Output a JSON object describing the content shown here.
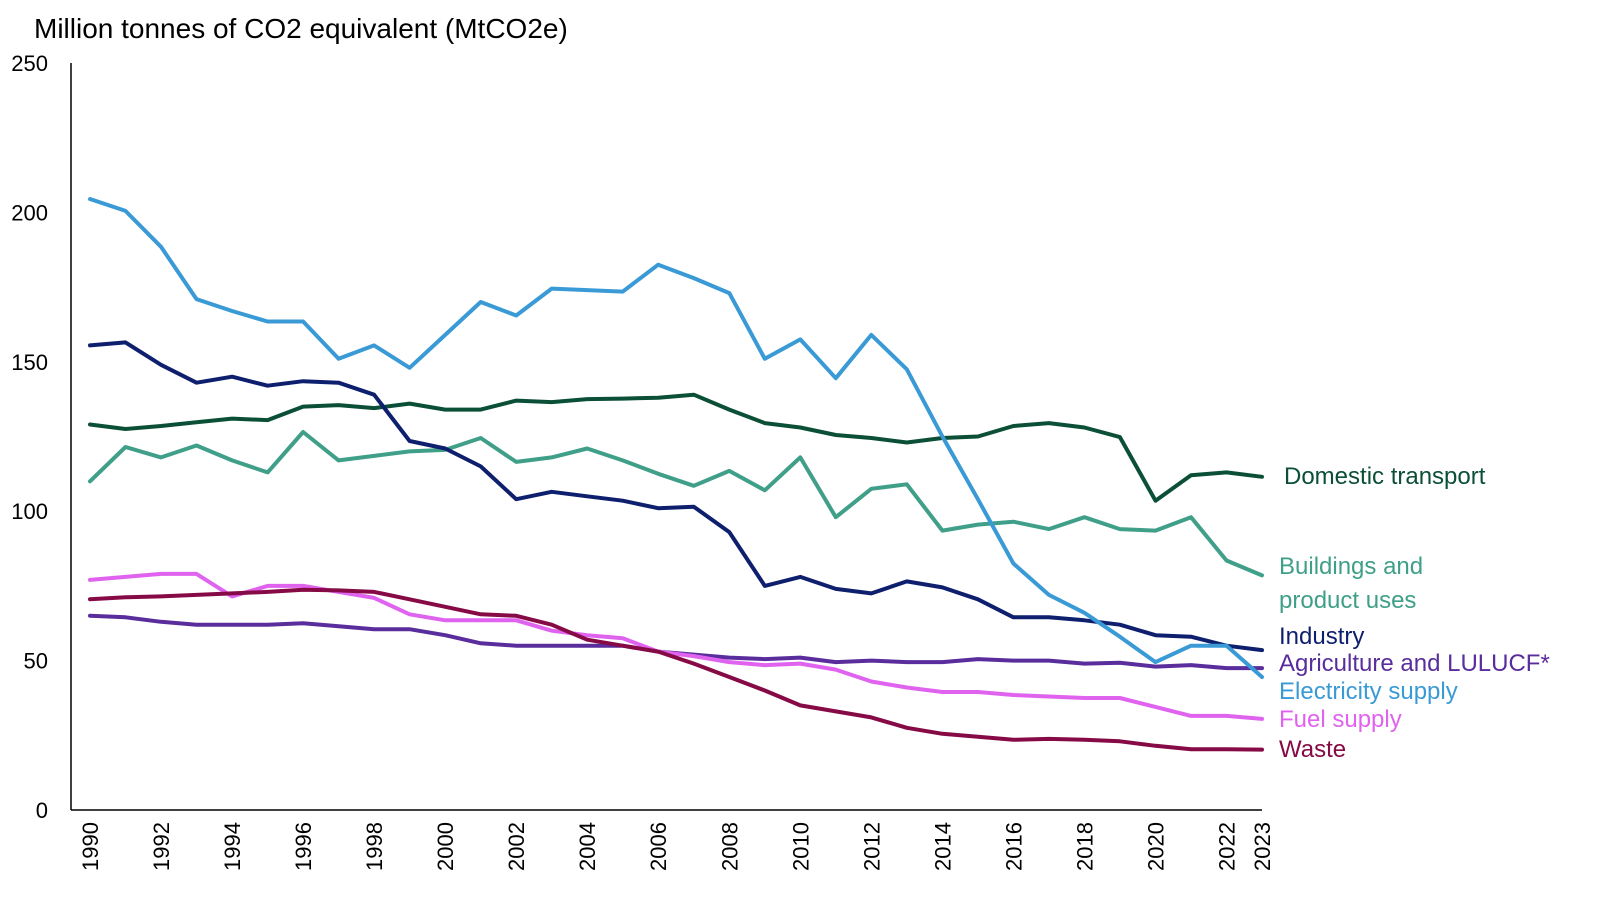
{
  "chart_data": {
    "type": "line",
    "ylabel": "Million tonnes of CO2 equivalent (MtCO2e)",
    "ylim": [
      0,
      250
    ],
    "yticks": [
      0,
      50,
      100,
      150,
      200,
      250
    ],
    "x": [
      1990,
      1991,
      1992,
      1993,
      1994,
      1995,
      1996,
      1997,
      1998,
      1999,
      2000,
      2001,
      2002,
      2003,
      2004,
      2005,
      2006,
      2007,
      2008,
      2009,
      2010,
      2011,
      2012,
      2013,
      2014,
      2015,
      2016,
      2017,
      2018,
      2019,
      2020,
      2021,
      2022,
      2023
    ],
    "xtick_labels": [
      "1990",
      "1992",
      "1994",
      "1996",
      "1998",
      "2000",
      "2002",
      "2004",
      "2006",
      "2008",
      "2010",
      "2012",
      "2014",
      "2016",
      "2018",
      "2020",
      "2022",
      "2023"
    ],
    "grid": false,
    "series": [
      {
        "name": "Domestic transport",
        "color": "#0b4f36",
        "values": [
          129,
          127.5,
          128.5,
          129.8,
          131,
          130.5,
          135,
          135.5,
          134.5,
          136,
          134,
          134,
          137,
          136.5,
          137.5,
          137.7,
          138,
          139,
          134,
          129.5,
          128,
          125.5,
          124.5,
          123,
          124.5,
          125,
          128.5,
          129.5,
          128,
          124.8,
          103.5,
          112,
          113,
          111.5
        ]
      },
      {
        "name": "Buildings and product uses",
        "color": "#3f9f88",
        "values": [
          110,
          121.5,
          118,
          122,
          117,
          113,
          126.5,
          117,
          118.5,
          120,
          120.5,
          124.5,
          116.5,
          118,
          121,
          117,
          112.5,
          108.5,
          113.5,
          107,
          118,
          98,
          107.5,
          109,
          93.5,
          95.5,
          96.5,
          94,
          98,
          94,
          93.5,
          98,
          83.5,
          78.5
        ]
      },
      {
        "name": "Industry",
        "color": "#0e1f6e",
        "values": [
          155.5,
          156.5,
          149,
          143,
          145,
          142,
          143.5,
          143,
          139,
          123.5,
          121,
          115,
          104,
          106.5,
          105,
          103.5,
          101,
          101.5,
          93,
          75,
          78,
          74,
          72.5,
          76.5,
          74.5,
          70.5,
          64.5,
          64.5,
          63.5,
          62,
          58.5,
          58,
          55,
          53.5
        ]
      },
      {
        "name": "Agriculture and LULUCF*",
        "color": "#5a2d9c",
        "values": [
          65,
          64.5,
          63,
          62,
          62,
          62,
          62.5,
          61.5,
          60.5,
          60.5,
          58.5,
          55.8,
          55,
          55,
          55,
          55,
          53,
          52,
          51,
          50.5,
          51,
          49.5,
          50,
          49.5,
          49.5,
          50.5,
          50,
          50,
          49,
          49.3,
          48,
          48.5,
          47.5,
          47.5
        ]
      },
      {
        "name": "Electricity supply",
        "color": "#3a9ad6",
        "values": [
          204.5,
          200.5,
          188.5,
          171,
          167,
          163.5,
          163.5,
          151,
          155.5,
          148,
          159,
          170,
          165.5,
          174.5,
          174,
          173.5,
          182.5,
          178,
          173,
          151,
          157.5,
          144.5,
          159,
          147.5,
          125,
          104,
          82.5,
          72,
          66,
          58,
          49.5,
          55,
          55,
          44.5
        ]
      },
      {
        "name": "Fuel supply",
        "color": "#e063ef",
        "values": [
          77,
          78,
          79,
          79,
          71.5,
          75,
          75,
          73,
          71,
          65.5,
          63.5,
          63.5,
          63.5,
          60,
          58.5,
          57.5,
          53,
          51.5,
          49.5,
          48.5,
          49,
          47,
          43,
          41,
          39.5,
          39.5,
          38.5,
          38,
          37.5,
          37.5,
          34.5,
          31.5,
          31.5,
          30.5
        ]
      },
      {
        "name": "Waste",
        "color": "#850a45",
        "values": [
          70.5,
          71.2,
          71.5,
          72,
          72.5,
          73,
          73.7,
          73.5,
          73,
          70.5,
          68,
          65.5,
          65,
          62,
          57,
          55,
          53,
          49,
          44.5,
          40,
          35,
          33,
          31,
          27.5,
          25.5,
          24.5,
          23.5,
          23.8,
          23.5,
          23,
          21.5,
          20.3,
          20.3,
          20.2
        ]
      }
    ]
  }
}
